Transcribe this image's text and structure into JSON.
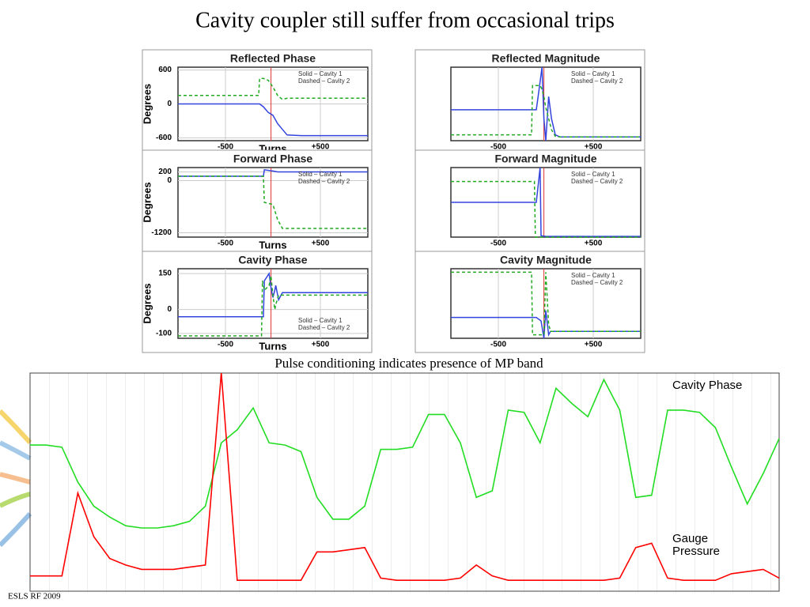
{
  "slide": {
    "title": "Cavity coupler still suffer from occasional trips",
    "caption": "Pulse conditioning indicates presence of MP band",
    "footer": "ESLS RF 2009"
  },
  "chart_data": [
    {
      "type": "line",
      "title": "Reflected Phase",
      "x_label": "Turns",
      "y_label": "Degrees",
      "legend": "upper right",
      "x": [
        -1000,
        -150,
        -140,
        -100,
        -50,
        0,
        50,
        100,
        150,
        300,
        1000
      ],
      "xlim": [
        -1000,
        1000
      ],
      "xticks": [
        -500,
        {
          "value": 500,
          "label": "+500"
        }
      ],
      "ylim": [
        -650,
        650
      ],
      "yticks": [
        600,
        0,
        -600
      ],
      "series": [
        {
          "name": "Solid – Cavity 1",
          "color": "#3344dd",
          "style": "solid",
          "values": [
            0,
            0,
            0,
            -50,
            -150,
            -200,
            -350,
            -450,
            -550,
            -560,
            -560
          ]
        },
        {
          "name": "Dashed – Cavity 2",
          "color": "#22aa22",
          "style": "dashed",
          "values": [
            150,
            150,
            450,
            450,
            420,
            300,
            150,
            80,
            100,
            100,
            100
          ]
        }
      ]
    },
    {
      "type": "line",
      "title": "Reflected Magnitude",
      "legend": "upper right",
      "x": [
        -1000,
        -150,
        -140,
        -100,
        -60,
        -40,
        -20,
        0,
        30,
        60,
        100,
        150,
        1000
      ],
      "xlim": [
        -1000,
        1000
      ],
      "xticks": [
        -500,
        {
          "value": 500,
          "label": "+500"
        }
      ],
      "ylim": [
        0,
        100
      ],
      "series": [
        {
          "name": "Solid – Cavity 1",
          "color": "#3344dd",
          "style": "solid",
          "values": [
            42,
            42,
            42,
            42,
            80,
            100,
            30,
            0,
            60,
            30,
            8,
            5,
            5
          ]
        },
        {
          "name": "Dashed – Cavity 2",
          "color": "#22aa22",
          "style": "dashed",
          "values": [
            8,
            8,
            75,
            75,
            75,
            70,
            60,
            45,
            30,
            15,
            6,
            5,
            5
          ]
        }
      ]
    },
    {
      "type": "line",
      "title": "Forward Phase",
      "x_label": "Turns",
      "y_label": "Degrees",
      "legend": "upper right",
      "x": [
        -1000,
        -100,
        -90,
        0,
        50,
        100,
        1000
      ],
      "xlim": [
        -1000,
        1000
      ],
      "xticks": [
        -500,
        {
          "value": 500,
          "label": "+500"
        }
      ],
      "ylim": [
        -1300,
        300
      ],
      "yticks": [
        200,
        0,
        -1200
      ],
      "series": [
        {
          "name": "Solid – Cavity 1",
          "color": "#3344dd",
          "style": "solid",
          "values": [
            100,
            100,
            250,
            220,
            200,
            200,
            200
          ]
        },
        {
          "name": "Dashed – Cavity 2",
          "color": "#22aa22",
          "style": "dashed",
          "values": [
            100,
            100,
            -500,
            -550,
            -900,
            -1100,
            -1100
          ]
        }
      ]
    },
    {
      "type": "line",
      "title": "Forward Magnitude",
      "legend": "upper right",
      "x": [
        -1000,
        -120,
        -110,
        -100,
        -60,
        -50,
        0,
        1000
      ],
      "xlim": [
        -1000,
        1000
      ],
      "xticks": [
        -500,
        {
          "value": 500,
          "label": "+500"
        }
      ],
      "ylim": [
        0,
        100
      ],
      "series": [
        {
          "name": "Solid – Cavity 1",
          "color": "#3344dd",
          "style": "solid",
          "values": [
            50,
            50,
            50,
            50,
            100,
            2,
            1,
            1
          ]
        },
        {
          "name": "Dashed – Cavity 2",
          "color": "#22aa22",
          "style": "dashed",
          "values": [
            80,
            80,
            0,
            0,
            0,
            0,
            0,
            0
          ]
        }
      ]
    },
    {
      "type": "line",
      "title": "Cavity Phase",
      "x_label": "Turns",
      "y_label": "Degrees",
      "legend": "lower right",
      "x": [
        -1000,
        -120,
        -110,
        -100,
        -90,
        -40,
        -20,
        0,
        20,
        30,
        60,
        100,
        1000
      ],
      "xlim": [
        -1000,
        1000
      ],
      "xticks": [
        -500,
        {
          "value": 500,
          "label": "+500"
        }
      ],
      "ylim": [
        -120,
        170
      ],
      "yticks": [
        150,
        0,
        -100
      ],
      "series": [
        {
          "name": "Solid – Cavity 1",
          "color": "#3344dd",
          "style": "solid",
          "values": [
            -30,
            -30,
            -30,
            -30,
            120,
            150,
            90,
            50,
            80,
            100,
            40,
            70,
            70
          ]
        },
        {
          "name": "Dashed – Cavity 2",
          "color": "#22aa22",
          "style": "dashed",
          "values": [
            -110,
            -110,
            120,
            100,
            80,
            100,
            140,
            60,
            0,
            20,
            60,
            60,
            60
          ]
        }
      ]
    },
    {
      "type": "line",
      "title": "Cavity Magnitude",
      "legend": "upper right",
      "x": [
        -1000,
        -150,
        -140,
        -100,
        -50,
        -20,
        0,
        30,
        50,
        1000
      ],
      "xlim": [
        -1000,
        1000
      ],
      "xticks": [
        -500,
        {
          "value": 500,
          "label": "+500"
        }
      ],
      "ylim": [
        0,
        100
      ],
      "series": [
        {
          "name": "Solid – Cavity 1",
          "color": "#3344dd",
          "style": "solid",
          "values": [
            30,
            30,
            30,
            30,
            25,
            0,
            40,
            5,
            10,
            10
          ]
        },
        {
          "name": "Dashed – Cavity 2",
          "color": "#22aa22",
          "style": "dashed",
          "values": [
            95,
            95,
            5,
            5,
            5,
            5,
            95,
            20,
            10,
            10
          ]
        }
      ]
    },
    {
      "type": "line",
      "ylim": [
        0,
        100
      ],
      "series": [
        {
          "name": "Cavity Phase",
          "color": "#22dd22",
          "values": [
            67,
            67,
            66,
            50,
            39,
            34,
            30,
            29,
            29,
            30,
            32,
            39,
            68,
            74,
            84,
            68,
            67,
            64,
            43,
            33,
            33,
            39,
            65,
            65,
            66,
            81,
            81,
            68,
            43,
            46,
            83,
            82,
            68,
            93,
            86,
            80,
            97,
            83,
            43,
            44,
            83,
            83,
            82,
            75,
            57,
            40,
            54,
            70
          ]
        },
        {
          "name": "Gauge Pressure",
          "color": "#ff0000",
          "values": [
            7,
            7,
            7,
            45,
            25,
            15,
            12,
            10,
            10,
            10,
            11,
            12,
            100,
            5,
            5,
            5,
            5,
            5,
            18,
            18,
            19,
            20,
            6,
            5,
            5,
            5,
            5,
            6,
            12,
            7,
            5,
            5,
            5,
            5,
            5,
            5,
            5,
            6,
            20,
            22,
            6,
            5,
            5,
            5,
            8,
            9,
            10,
            6
          ]
        }
      ]
    }
  ]
}
